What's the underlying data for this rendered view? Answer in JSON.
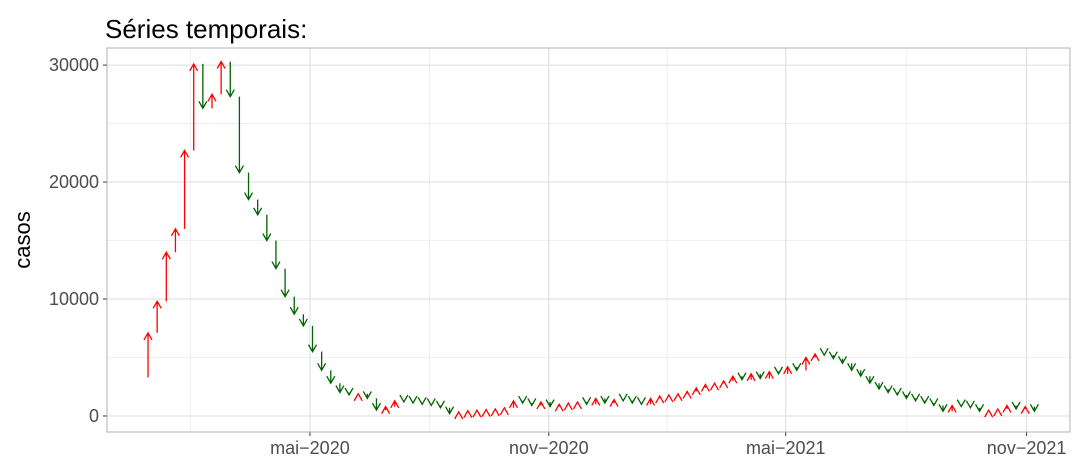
{
  "chart_data": {
    "type": "arrow",
    "title": "Séries temporais:",
    "ylabel": "casos",
    "values": [
      3300,
      7100,
      9800,
      14000,
      16000,
      22700,
      30100,
      26300,
      27500,
      30300,
      27300,
      20800,
      18500,
      17200,
      15000,
      12600,
      10200,
      8700,
      7700,
      5500,
      3900,
      2800,
      2000,
      1800,
      1900,
      1500,
      500,
      800,
      1300,
      1200,
      1100,
      1000,
      900,
      700,
      200,
      350,
      450,
      500,
      550,
      600,
      700,
      1300,
      1100,
      900,
      1200,
      800,
      1000,
      1100,
      1200,
      1000,
      1500,
      1100,
      1400,
      1300,
      1100,
      1000,
      1500,
      1700,
      1800,
      1900,
      2100,
      2400,
      2700,
      2800,
      3000,
      3400,
      3100,
      3600,
      3200,
      3800,
      3600,
      4200,
      3900,
      5000,
      5300,
      5200,
      4900,
      4500,
      3900,
      3400,
      2800,
      2300,
      2000,
      1800,
      1500,
      1300,
      1100,
      900,
      400,
      900,
      800,
      700,
      400,
      500,
      600,
      900,
      600,
      800,
      400
    ],
    "colors": {
      "increase": "#ff0000",
      "decrease": "#006400"
    },
    "ylim": [
      -1370,
      31460
    ],
    "yticks": [
      0,
      10000,
      20000,
      30000
    ],
    "xlim": [
      -3.49,
      101.9
    ],
    "xticks": [
      {
        "value": 18.72,
        "label": "mai−2020"
      },
      {
        "value": 44.86,
        "label": "nov−2020"
      },
      {
        "value": 70.79,
        "label": "mai−2021"
      },
      {
        "value": 97.15,
        "label": "nov−2021"
      }
    ],
    "grid": true
  }
}
